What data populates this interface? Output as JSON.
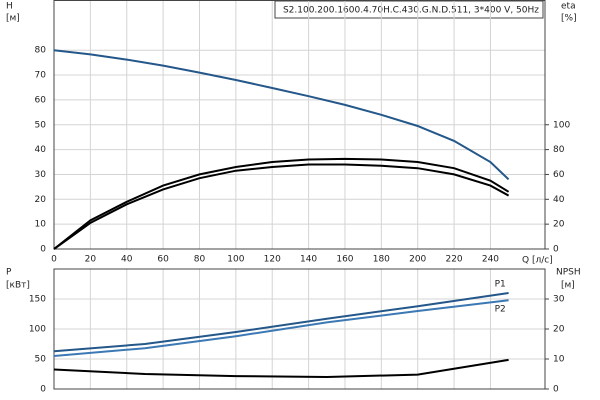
{
  "chart_data": [
    {
      "type": "line",
      "title": "S2.100.200.1600.4.70H.C.430.G.N.D.511, 3*400 V, 50Hz",
      "xlabel": "Q [л/с]",
      "ylabel": "H",
      "ylabel_unit": "[м]",
      "y2label": "eta",
      "y2label_unit": "[%]",
      "x": [
        0,
        20,
        40,
        60,
        80,
        100,
        120,
        140,
        160,
        180,
        200,
        220,
        240,
        250
      ],
      "xlim": [
        0,
        270
      ],
      "xticks": [
        0,
        20,
        40,
        60,
        80,
        100,
        120,
        140,
        160,
        180,
        200,
        220,
        240
      ],
      "ylim": [
        0,
        100
      ],
      "yticks": [
        0,
        10,
        20,
        30,
        40,
        50,
        60,
        70,
        80
      ],
      "y2lim": [
        0,
        200
      ],
      "y2ticks": [
        0,
        20,
        40,
        60,
        80,
        100
      ],
      "grid": true,
      "series": [
        {
          "color": "#24578a",
          "values": [
            80,
            78.3,
            76.2,
            73.8,
            71,
            68,
            64.8,
            61.5,
            58,
            54,
            49.5,
            43.5,
            35,
            28
          ]
        },
        {
          "color": "#000000",
          "axis": "y2",
          "values": [
            0,
            23,
            38,
            51,
            60,
            66,
            70,
            72,
            72.5,
            72,
            70,
            65,
            55,
            46
          ]
        },
        {
          "color": "#000000",
          "axis": "y2",
          "values": [
            0,
            21,
            36,
            48,
            57,
            63,
            66,
            68,
            68,
            67,
            65,
            60,
            51,
            43
          ]
        }
      ]
    },
    {
      "type": "line",
      "ylabel": "P",
      "ylabel_unit": "[кВт]",
      "y2label": "NPSH",
      "y2label_unit": "[м]",
      "x": [
        0,
        50,
        100,
        150,
        200,
        250
      ],
      "xlim": [
        0,
        270
      ],
      "ylim": [
        0,
        200
      ],
      "yticks": [
        0,
        50,
        100,
        150
      ],
      "y2lim": [
        0,
        40
      ],
      "y2ticks": [
        0,
        10,
        20,
        30
      ],
      "grid": true,
      "series": [
        {
          "name": "P1",
          "color": "#24578a",
          "values": [
            63,
            75,
            95,
            117,
            138,
            160
          ]
        },
        {
          "name": "P2",
          "color": "#3b78b4",
          "values": [
            55,
            68,
            88,
            111,
            130,
            148
          ]
        },
        {
          "color": "#000000",
          "axis": "y2",
          "values": [
            6.5,
            5,
            4.3,
            4.0,
            4.8,
            9.7
          ]
        }
      ]
    }
  ]
}
